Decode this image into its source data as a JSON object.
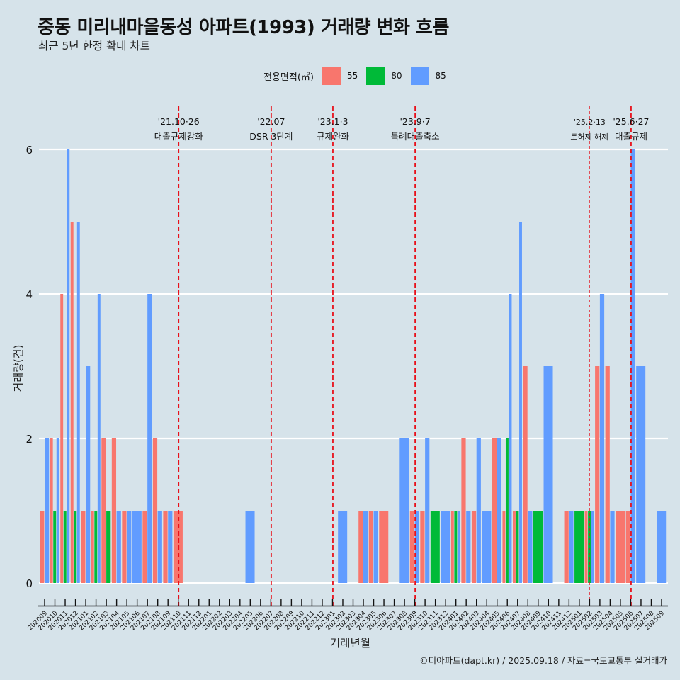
{
  "header": {
    "title": "중동 미리내마을동성 아파트(1993) 거래량 변화 흐름",
    "subtitle": "최근 5년 한정 확대 차트"
  },
  "legend": {
    "title": "전용면적(㎡)",
    "items": [
      {
        "label": "55",
        "color": "#f8766d"
      },
      {
        "label": "80",
        "color": "#00ba38"
      },
      {
        "label": "85",
        "color": "#619cff"
      }
    ]
  },
  "footer": {
    "caption": "©디아파트(dapt.kr) / 2025.09.18 / 자료=국토교통부 실거래가"
  },
  "chart_data": {
    "type": "bar",
    "title": "중동 미리내마을동성 아파트(1993) 거래량 변화 흐름",
    "subtitle": "최근 5년 한정 확대 차트",
    "xlabel": "거래년월",
    "ylabel": "거래량(건)",
    "ylim": [
      0,
      6
    ],
    "yticks": [
      0,
      2,
      4,
      6
    ],
    "grid": "horizontal",
    "legend_position": "top",
    "categories": [
      "202009",
      "202010",
      "202011",
      "202012",
      "202101",
      "202102",
      "202103",
      "202104",
      "202105",
      "202106",
      "202107",
      "202108",
      "202109",
      "202110",
      "202111",
      "202112",
      "202201",
      "202202",
      "202203",
      "202204",
      "202205",
      "202206",
      "202207",
      "202208",
      "202209",
      "202210",
      "202211",
      "202212",
      "202301",
      "202302",
      "202303",
      "202304",
      "202305",
      "202306",
      "202307",
      "202308",
      "202309",
      "202310",
      "202311",
      "202312",
      "202401",
      "202402",
      "202403",
      "202404",
      "202405",
      "202406",
      "202407",
      "202408",
      "202409",
      "202410",
      "202411",
      "202412",
      "202501",
      "202502",
      "202503",
      "202504",
      "202505",
      "202506",
      "202507",
      "202508",
      "202509"
    ],
    "series": [
      {
        "name": "55",
        "color": "#f8766d",
        "values": [
          1,
          2,
          4,
          5,
          1,
          1,
          2,
          2,
          1,
          null,
          1,
          2,
          1,
          1,
          null,
          null,
          null,
          null,
          null,
          null,
          null,
          null,
          null,
          null,
          null,
          null,
          null,
          null,
          null,
          null,
          null,
          1,
          1,
          1,
          null,
          null,
          1,
          1,
          null,
          null,
          1,
          2,
          1,
          null,
          2,
          1,
          1,
          3,
          null,
          null,
          null,
          1,
          null,
          1,
          3,
          3,
          1,
          1,
          null,
          null,
          null
        ]
      },
      {
        "name": "80",
        "color": "#00ba38",
        "values": [
          null,
          1,
          1,
          1,
          null,
          1,
          1,
          null,
          null,
          null,
          null,
          null,
          null,
          null,
          null,
          null,
          null,
          null,
          null,
          null,
          null,
          null,
          null,
          null,
          null,
          null,
          null,
          null,
          null,
          null,
          null,
          null,
          null,
          null,
          null,
          null,
          null,
          null,
          1,
          null,
          1,
          null,
          null,
          null,
          null,
          2,
          1,
          null,
          1,
          null,
          null,
          null,
          1,
          1,
          null,
          null,
          null,
          null,
          null,
          null,
          null
        ]
      },
      {
        "name": "85",
        "color": "#619cff",
        "values": [
          2,
          2,
          6,
          5,
          3,
          4,
          null,
          1,
          1,
          1,
          4,
          1,
          1,
          null,
          null,
          null,
          null,
          null,
          null,
          null,
          1,
          null,
          null,
          null,
          null,
          null,
          null,
          null,
          null,
          1,
          null,
          1,
          1,
          null,
          null,
          2,
          1,
          2,
          null,
          1,
          1,
          1,
          2,
          1,
          2,
          4,
          5,
          1,
          null,
          3,
          null,
          1,
          null,
          1,
          4,
          1,
          null,
          6,
          3,
          null,
          1
        ]
      }
    ],
    "annotations": [
      {
        "at": "202110",
        "date": "'21.10·26",
        "label": "대출규제강화",
        "style": "major"
      },
      {
        "at": "202207",
        "date": "'22.07",
        "label": "DSR 3단계",
        "style": "major"
      },
      {
        "at": "202301",
        "date": "'23.1·3",
        "label": "규제완화",
        "style": "major"
      },
      {
        "at": "202309",
        "date": "'23.9·7",
        "label": "특례대출축소",
        "style": "major"
      },
      {
        "at": "202502",
        "date": "'25.2·13",
        "label": "토허제 해제",
        "style": "minor"
      },
      {
        "at": "202506",
        "date": "'25.6·27",
        "label": "대출규제",
        "style": "major"
      }
    ],
    "event_line_color": "#e8101a"
  }
}
